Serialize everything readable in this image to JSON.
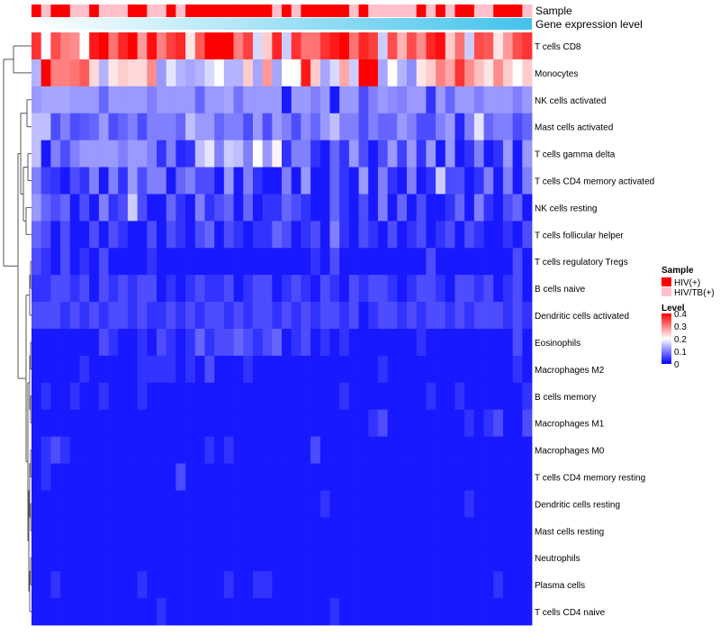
{
  "chart_data": {
    "type": "heatmap",
    "title": "",
    "annotation_tracks": {
      "sample_label": "Sample",
      "gene_expression_label": "Gene expression level"
    },
    "sample_groups": [
      "HIV(+)",
      "HIV/TB(+)",
      "HIV(+)",
      "HIV(+)",
      "HIV/TB(+)",
      "HIV/TB(+)",
      "HIV(+)",
      "HIV/TB(+)",
      "HIV/TB(+)",
      "HIV/TB(+)",
      "HIV(+)",
      "HIV(+)",
      "HIV/TB(+)",
      "HIV/TB(+)",
      "HIV(+)",
      "HIV/TB(+)",
      "HIV(+)",
      "HIV(+)",
      "HIV(+)",
      "HIV(+)",
      "HIV(+)",
      "HIV(+)",
      "HIV(+)",
      "HIV(+)",
      "HIV(+)",
      "HIV/TB(+)",
      "HIV(+)",
      "HIV/TB(+)",
      "HIV(+)",
      "HIV(+)",
      "HIV(+)",
      "HIV(+)",
      "HIV(+)",
      "HIV/TB(+)",
      "HIV(+)",
      "HIV/TB(+)",
      "HIV/TB(+)",
      "HIV/TB(+)",
      "HIV/TB(+)",
      "HIV/TB(+)",
      "HIV(+)",
      "HIV/TB(+)",
      "HIV(+)",
      "HIV/TB(+)",
      "HIV(+)",
      "HIV(+)",
      "HIV/TB(+)",
      "HIV/TB(+)",
      "HIV(+)",
      "HIV(+)",
      "HIV(+)",
      "HIV/TB(+)"
    ],
    "rows": [
      "T cells CD8",
      "Monocytes",
      "NK cells activated",
      "Mast cells activated",
      "T cells gamma delta",
      "T cells CD4 memory activated",
      "NK cells resting",
      "T cells follicular helper",
      "T cells regulatory  Tregs",
      "B cells naive",
      "Dendritic cells activated",
      "Eosinophils",
      "Macrophages M2",
      "B cells memory",
      "Macrophages M1",
      "Macrophages M0",
      "T cells CD4 memory resting",
      "Dendritic cells resting",
      "Mast cells resting",
      "Neutrophils",
      "Plasma cells",
      "T cells CD4 naive"
    ],
    "values": [
      [
        0.36,
        0.2,
        0.34,
        0.3,
        0.29,
        0.2,
        0.38,
        0.4,
        0.31,
        0.37,
        0.4,
        0.28,
        0.39,
        0.3,
        0.35,
        0.37,
        0.22,
        0.33,
        0.4,
        0.4,
        0.4,
        0.3,
        0.35,
        0.17,
        0.24,
        0.37,
        0.16,
        0.36,
        0.31,
        0.31,
        0.36,
        0.38,
        0.4,
        0.31,
        0.37,
        0.35,
        0.16,
        0.34,
        0.26,
        0.34,
        0.29,
        0.37,
        0.39,
        0.24,
        0.31,
        0.16,
        0.34,
        0.33,
        0.22,
        0.28,
        0.34,
        0.36
      ],
      [
        0.14,
        0.4,
        0.3,
        0.3,
        0.31,
        0.33,
        0.23,
        0.14,
        0.22,
        0.24,
        0.23,
        0.23,
        0.29,
        0.12,
        0.18,
        0.14,
        0.13,
        0.14,
        0.17,
        0.2,
        0.14,
        0.14,
        0.24,
        0.13,
        0.28,
        0.13,
        0.2,
        0.2,
        0.38,
        0.24,
        0.13,
        0.17,
        0.27,
        0.16,
        0.4,
        0.4,
        0.13,
        0.2,
        0.14,
        0.11,
        0.22,
        0.24,
        0.3,
        0.27,
        0.36,
        0.29,
        0.25,
        0.22,
        0.29,
        0.24,
        0.2,
        0.24
      ],
      [
        0.12,
        0.13,
        0.13,
        0.13,
        0.12,
        0.12,
        0.12,
        0.08,
        0.12,
        0.12,
        0.12,
        0.12,
        0.1,
        0.12,
        0.12,
        0.12,
        0.12,
        0.08,
        0.12,
        0.12,
        0.13,
        0.09,
        0.12,
        0.12,
        0.12,
        0.12,
        0.02,
        0.12,
        0.12,
        0.1,
        0.12,
        0.02,
        0.12,
        0.12,
        0.06,
        0.1,
        0.12,
        0.11,
        0.1,
        0.12,
        0.12,
        0.04,
        0.12,
        0.08,
        0.12,
        0.12,
        0.1,
        0.12,
        0.12,
        0.12,
        0.1,
        0.12
      ],
      [
        0.15,
        0.15,
        0.06,
        0.1,
        0.06,
        0.07,
        0.08,
        0.12,
        0.06,
        0.08,
        0.1,
        0.06,
        0.1,
        0.1,
        0.1,
        0.08,
        0.15,
        0.12,
        0.12,
        0.08,
        0.1,
        0.1,
        0.06,
        0.12,
        0.06,
        0.12,
        0.1,
        0.06,
        0.11,
        0.08,
        0.12,
        0.15,
        0.1,
        0.1,
        0.06,
        0.1,
        0.08,
        0.08,
        0.12,
        0.1,
        0.06,
        0.06,
        0.1,
        0.12,
        0.03,
        0.1,
        0.18,
        0.08,
        0.1,
        0.1,
        0.06,
        0.08
      ],
      [
        0.15,
        0.02,
        0.1,
        0.06,
        0.1,
        0.12,
        0.12,
        0.12,
        0.12,
        0.1,
        0.12,
        0.12,
        0.1,
        0.04,
        0.1,
        0.03,
        0.04,
        0.15,
        0.18,
        0.1,
        0.16,
        0.15,
        0.1,
        0.2,
        0.12,
        0.21,
        0.04,
        0.1,
        0.1,
        0.04,
        0.02,
        0.08,
        0.04,
        0.12,
        0.06,
        0.02,
        0.06,
        0.12,
        0.05,
        0.12,
        0.04,
        0.12,
        0.02,
        0.12,
        0.02,
        0.04,
        0.1,
        0.02,
        0.04,
        0.12,
        0.02,
        0.12
      ],
      [
        0.1,
        0.05,
        0.04,
        0.02,
        0.06,
        0.04,
        0.1,
        0.02,
        0.1,
        0.04,
        0.12,
        0.06,
        0.1,
        0.1,
        0.02,
        0.08,
        0.1,
        0.06,
        0.06,
        0.02,
        0.12,
        0.02,
        0.1,
        0.04,
        0.02,
        0.02,
        0.1,
        0.02,
        0.12,
        0.02,
        0.02,
        0.08,
        0.04,
        0.02,
        0.12,
        0.02,
        0.1,
        0.04,
        0.02,
        0.1,
        0.02,
        0.04,
        0.16,
        0.06,
        0.06,
        0.02,
        0.04,
        0.1,
        0.02,
        0.1,
        0.02,
        0.1
      ],
      [
        0.12,
        0.08,
        0.06,
        0.08,
        0.02,
        0.06,
        0.02,
        0.1,
        0.04,
        0.06,
        0.16,
        0.06,
        0.02,
        0.02,
        0.08,
        0.04,
        0.02,
        0.1,
        0.04,
        0.06,
        0.08,
        0.02,
        0.08,
        0.02,
        0.04,
        0.04,
        0.08,
        0.06,
        0.04,
        0.02,
        0.02,
        0.08,
        0.04,
        0.02,
        0.06,
        0.02,
        0.1,
        0.02,
        0.08,
        0.02,
        0.06,
        0.02,
        0.02,
        0.04,
        0.08,
        0.02,
        0.1,
        0.04,
        0.02,
        0.06,
        0.08,
        0.02
      ],
      [
        0.08,
        0.06,
        0.02,
        0.06,
        0.02,
        0.02,
        0.06,
        0.02,
        0.06,
        0.04,
        0.02,
        0.02,
        0.06,
        0.02,
        0.06,
        0.04,
        0.02,
        0.06,
        0.08,
        0.02,
        0.06,
        0.04,
        0.02,
        0.04,
        0.04,
        0.08,
        0.06,
        0.02,
        0.04,
        0.06,
        0.02,
        0.1,
        0.04,
        0.02,
        0.06,
        0.04,
        0.02,
        0.06,
        0.02,
        0.04,
        0.06,
        0.02,
        0.04,
        0.06,
        0.02,
        0.06,
        0.04,
        0.02,
        0.02,
        0.04,
        0.02,
        0.06
      ],
      [
        0.06,
        0.04,
        0.02,
        0.06,
        0.02,
        0.04,
        0.02,
        0.06,
        0.02,
        0.02,
        0.02,
        0.02,
        0.04,
        0.02,
        0.02,
        0.02,
        0.02,
        0.02,
        0.02,
        0.02,
        0.02,
        0.02,
        0.02,
        0.02,
        0.02,
        0.02,
        0.02,
        0.02,
        0.02,
        0.04,
        0.02,
        0.06,
        0.02,
        0.02,
        0.02,
        0.02,
        0.02,
        0.02,
        0.02,
        0.02,
        0.02,
        0.06,
        0.02,
        0.02,
        0.02,
        0.02,
        0.02,
        0.02,
        0.02,
        0.02,
        0.06,
        0.02
      ],
      [
        0.04,
        0.04,
        0.06,
        0.06,
        0.04,
        0.06,
        0.02,
        0.06,
        0.04,
        0.06,
        0.04,
        0.06,
        0.06,
        0.02,
        0.04,
        0.02,
        0.04,
        0.06,
        0.04,
        0.04,
        0.06,
        0.02,
        0.04,
        0.06,
        0.06,
        0.02,
        0.04,
        0.06,
        0.04,
        0.02,
        0.06,
        0.04,
        0.02,
        0.06,
        0.04,
        0.06,
        0.06,
        0.04,
        0.02,
        0.04,
        0.06,
        0.06,
        0.04,
        0.02,
        0.06,
        0.06,
        0.04,
        0.06,
        0.02,
        0.04,
        0.06,
        0.02
      ],
      [
        0.06,
        0.06,
        0.06,
        0.04,
        0.06,
        0.04,
        0.06,
        0.04,
        0.06,
        0.06,
        0.04,
        0.06,
        0.04,
        0.04,
        0.06,
        0.04,
        0.06,
        0.04,
        0.06,
        0.06,
        0.04,
        0.06,
        0.04,
        0.06,
        0.06,
        0.04,
        0.06,
        0.04,
        0.06,
        0.04,
        0.06,
        0.06,
        0.04,
        0.06,
        0.02,
        0.04,
        0.06,
        0.06,
        0.04,
        0.06,
        0.04,
        0.06,
        0.06,
        0.04,
        0.06,
        0.04,
        0.06,
        0.06,
        0.06,
        0.04,
        0.06,
        0.04
      ],
      [
        0.02,
        0.02,
        0.02,
        0.02,
        0.02,
        0.02,
        0.02,
        0.06,
        0.04,
        0.02,
        0.02,
        0.04,
        0.02,
        0.06,
        0.04,
        0.02,
        0.04,
        0.08,
        0.04,
        0.06,
        0.06,
        0.08,
        0.06,
        0.04,
        0.06,
        0.08,
        0.02,
        0.04,
        0.06,
        0.02,
        0.04,
        0.02,
        0.04,
        0.02,
        0.02,
        0.02,
        0.02,
        0.02,
        0.02,
        0.02,
        0.04,
        0.02,
        0.02,
        0.02,
        0.02,
        0.02,
        0.02,
        0.02,
        0.02,
        0.02,
        0.06,
        0.02
      ],
      [
        0.02,
        0.02,
        0.02,
        0.02,
        0.02,
        0.04,
        0.02,
        0.02,
        0.02,
        0.02,
        0.02,
        0.04,
        0.04,
        0.04,
        0.04,
        0.02,
        0.04,
        0.02,
        0.06,
        0.02,
        0.02,
        0.02,
        0.04,
        0.02,
        0.02,
        0.02,
        0.02,
        0.02,
        0.02,
        0.02,
        0.02,
        0.02,
        0.02,
        0.02,
        0.02,
        0.02,
        0.04,
        0.02,
        0.02,
        0.02,
        0.02,
        0.02,
        0.02,
        0.02,
        0.02,
        0.02,
        0.02,
        0.02,
        0.02,
        0.02,
        0.04,
        0.02
      ],
      [
        0.02,
        0.04,
        0.02,
        0.02,
        0.04,
        0.02,
        0.02,
        0.04,
        0.02,
        0.02,
        0.02,
        0.04,
        0.02,
        0.02,
        0.02,
        0.02,
        0.02,
        0.02,
        0.02,
        0.02,
        0.02,
        0.02,
        0.02,
        0.02,
        0.02,
        0.02,
        0.02,
        0.02,
        0.02,
        0.02,
        0.02,
        0.02,
        0.04,
        0.02,
        0.02,
        0.02,
        0.02,
        0.02,
        0.02,
        0.02,
        0.02,
        0.04,
        0.02,
        0.02,
        0.04,
        0.02,
        0.02,
        0.02,
        0.02,
        0.02,
        0.02,
        0.04
      ],
      [
        0.02,
        0.02,
        0.02,
        0.02,
        0.02,
        0.02,
        0.02,
        0.02,
        0.02,
        0.02,
        0.02,
        0.02,
        0.02,
        0.02,
        0.02,
        0.02,
        0.02,
        0.02,
        0.02,
        0.02,
        0.02,
        0.02,
        0.02,
        0.02,
        0.02,
        0.02,
        0.02,
        0.02,
        0.02,
        0.02,
        0.02,
        0.02,
        0.02,
        0.02,
        0.02,
        0.04,
        0.06,
        0.02,
        0.02,
        0.02,
        0.02,
        0.02,
        0.02,
        0.02,
        0.02,
        0.04,
        0.02,
        0.04,
        0.06,
        0.02,
        0.02,
        0.06
      ],
      [
        0.02,
        0.04,
        0.06,
        0.04,
        0.02,
        0.02,
        0.02,
        0.02,
        0.02,
        0.02,
        0.02,
        0.02,
        0.02,
        0.02,
        0.02,
        0.02,
        0.02,
        0.02,
        0.04,
        0.02,
        0.04,
        0.02,
        0.02,
        0.02,
        0.02,
        0.02,
        0.02,
        0.02,
        0.02,
        0.06,
        0.02,
        0.02,
        0.02,
        0.02,
        0.02,
        0.02,
        0.02,
        0.02,
        0.02,
        0.02,
        0.02,
        0.02,
        0.02,
        0.02,
        0.02,
        0.02,
        0.02,
        0.02,
        0.02,
        0.02,
        0.02,
        0.02
      ],
      [
        0.02,
        0.04,
        0.02,
        0.02,
        0.02,
        0.02,
        0.02,
        0.02,
        0.02,
        0.02,
        0.02,
        0.02,
        0.02,
        0.02,
        0.02,
        0.06,
        0.02,
        0.02,
        0.02,
        0.02,
        0.02,
        0.02,
        0.02,
        0.02,
        0.02,
        0.02,
        0.02,
        0.02,
        0.02,
        0.02,
        0.02,
        0.02,
        0.02,
        0.02,
        0.02,
        0.02,
        0.02,
        0.02,
        0.02,
        0.02,
        0.02,
        0.02,
        0.02,
        0.02,
        0.02,
        0.02,
        0.02,
        0.02,
        0.02,
        0.02,
        0.02,
        0.02
      ],
      [
        0.02,
        0.02,
        0.02,
        0.02,
        0.02,
        0.02,
        0.02,
        0.02,
        0.02,
        0.02,
        0.02,
        0.02,
        0.02,
        0.02,
        0.02,
        0.02,
        0.02,
        0.02,
        0.02,
        0.02,
        0.02,
        0.02,
        0.02,
        0.02,
        0.02,
        0.02,
        0.02,
        0.02,
        0.02,
        0.02,
        0.04,
        0.02,
        0.02,
        0.02,
        0.02,
        0.02,
        0.02,
        0.02,
        0.02,
        0.02,
        0.02,
        0.02,
        0.02,
        0.02,
        0.02,
        0.04,
        0.02,
        0.02,
        0.02,
        0.02,
        0.02,
        0.02
      ],
      [
        0.02,
        0.02,
        0.02,
        0.02,
        0.02,
        0.02,
        0.02,
        0.02,
        0.02,
        0.02,
        0.02,
        0.02,
        0.02,
        0.02,
        0.02,
        0.02,
        0.02,
        0.02,
        0.02,
        0.02,
        0.02,
        0.02,
        0.02,
        0.02,
        0.02,
        0.02,
        0.02,
        0.02,
        0.02,
        0.02,
        0.02,
        0.02,
        0.02,
        0.02,
        0.02,
        0.02,
        0.02,
        0.02,
        0.02,
        0.02,
        0.02,
        0.02,
        0.02,
        0.02,
        0.02,
        0.02,
        0.02,
        0.02,
        0.02,
        0.02,
        0.02,
        0.02
      ],
      [
        0.02,
        0.02,
        0.02,
        0.02,
        0.02,
        0.02,
        0.02,
        0.02,
        0.02,
        0.02,
        0.02,
        0.02,
        0.02,
        0.02,
        0.02,
        0.02,
        0.02,
        0.02,
        0.02,
        0.02,
        0.02,
        0.02,
        0.02,
        0.02,
        0.02,
        0.02,
        0.02,
        0.02,
        0.02,
        0.02,
        0.02,
        0.02,
        0.02,
        0.02,
        0.02,
        0.02,
        0.02,
        0.02,
        0.02,
        0.02,
        0.02,
        0.02,
        0.02,
        0.02,
        0.02,
        0.02,
        0.02,
        0.02,
        0.02,
        0.02,
        0.02,
        0.02
      ],
      [
        0.02,
        0.02,
        0.04,
        0.02,
        0.02,
        0.02,
        0.02,
        0.02,
        0.02,
        0.02,
        0.02,
        0.04,
        0.02,
        0.02,
        0.02,
        0.02,
        0.02,
        0.02,
        0.02,
        0.02,
        0.04,
        0.02,
        0.02,
        0.04,
        0.04,
        0.02,
        0.02,
        0.02,
        0.02,
        0.02,
        0.02,
        0.02,
        0.02,
        0.02,
        0.02,
        0.02,
        0.02,
        0.02,
        0.02,
        0.02,
        0.02,
        0.02,
        0.02,
        0.02,
        0.02,
        0.02,
        0.02,
        0.02,
        0.04,
        0.02,
        0.02,
        0.02
      ],
      [
        0.02,
        0.02,
        0.02,
        0.02,
        0.02,
        0.02,
        0.02,
        0.02,
        0.02,
        0.02,
        0.02,
        0.02,
        0.02,
        0.04,
        0.02,
        0.02,
        0.02,
        0.02,
        0.02,
        0.02,
        0.02,
        0.02,
        0.02,
        0.02,
        0.02,
        0.02,
        0.02,
        0.02,
        0.02,
        0.02,
        0.02,
        0.04,
        0.02,
        0.02,
        0.02,
        0.02,
        0.02,
        0.02,
        0.02,
        0.02,
        0.02,
        0.02,
        0.02,
        0.02,
        0.02,
        0.02,
        0.02,
        0.02,
        0.02,
        0.02,
        0.02,
        0.02
      ]
    ],
    "color_scale": {
      "low": "#0000ff",
      "mid": "#ffffff",
      "high": "#ff0000",
      "domain": [
        0,
        0.2,
        0.4
      ]
    },
    "legend": {
      "sample_title": "Sample",
      "sample_entries": [
        {
          "label": "HIV(+)",
          "color": "#ff0000"
        },
        {
          "label": "HIV/TB(+)",
          "color": "#ffc0cb"
        }
      ],
      "level_title": "Level",
      "level_ticks": [
        "0.4",
        "0.3",
        "0.2",
        "0.1",
        "0"
      ],
      "level_tick_values": [
        0.4,
        0.3,
        0.2,
        0.1,
        0
      ]
    },
    "gene_expression_gradient": {
      "start": "#ffffff",
      "end": "#42c3ec"
    }
  }
}
